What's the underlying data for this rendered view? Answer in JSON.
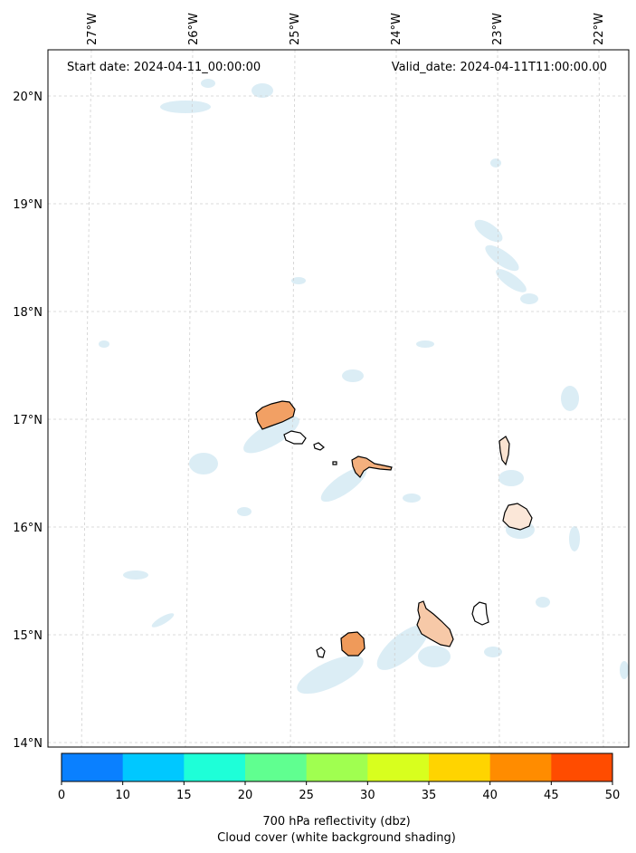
{
  "map": {
    "header": {
      "start_date": "Start date: 2024-04-11_00:00:00",
      "valid_date": "Valid_date: 2024-04-11T11:00:00.00"
    },
    "longitude_labels": [
      "27°W",
      "26°W",
      "25°W",
      "24°W",
      "23°W",
      "22°W"
    ],
    "latitude_labels": [
      "20°N",
      "19°N",
      "18°N",
      "17°N",
      "16°N",
      "15°N",
      "14°N"
    ],
    "islands": [
      {
        "name": "santo-antao",
        "fill": "#f2a064"
      },
      {
        "name": "sao-vicente",
        "fill": "#ffffff"
      },
      {
        "name": "santa-luzia",
        "fill": "#ffffff"
      },
      {
        "name": "branco",
        "fill": "#ffffff"
      },
      {
        "name": "sao-nicolau",
        "fill": "#f4b07e"
      },
      {
        "name": "sal",
        "fill": "#fbe3d0"
      },
      {
        "name": "boa-vista",
        "fill": "#fbe7d8"
      },
      {
        "name": "maio",
        "fill": "#ffffff"
      },
      {
        "name": "santiago",
        "fill": "#f7c9a8"
      },
      {
        "name": "fogo",
        "fill": "#ef9a5a"
      },
      {
        "name": "brava",
        "fill": "#ffffff"
      }
    ],
    "colorbar": {
      "ticks": [
        "0",
        "10",
        "15",
        "20",
        "25",
        "30",
        "35",
        "40",
        "45",
        "50"
      ],
      "colors": [
        "#0a80ff",
        "#00c8ff",
        "#1effd8",
        "#60ff90",
        "#a0ff50",
        "#d8ff1e",
        "#ffd400",
        "#ff8c00",
        "#ff4c00"
      ],
      "label_line1": "700 hPa reflectivity (dbz)",
      "label_line2": "Cloud cover (white background shading)"
    },
    "cloud_color": "#cfe7f2"
  }
}
